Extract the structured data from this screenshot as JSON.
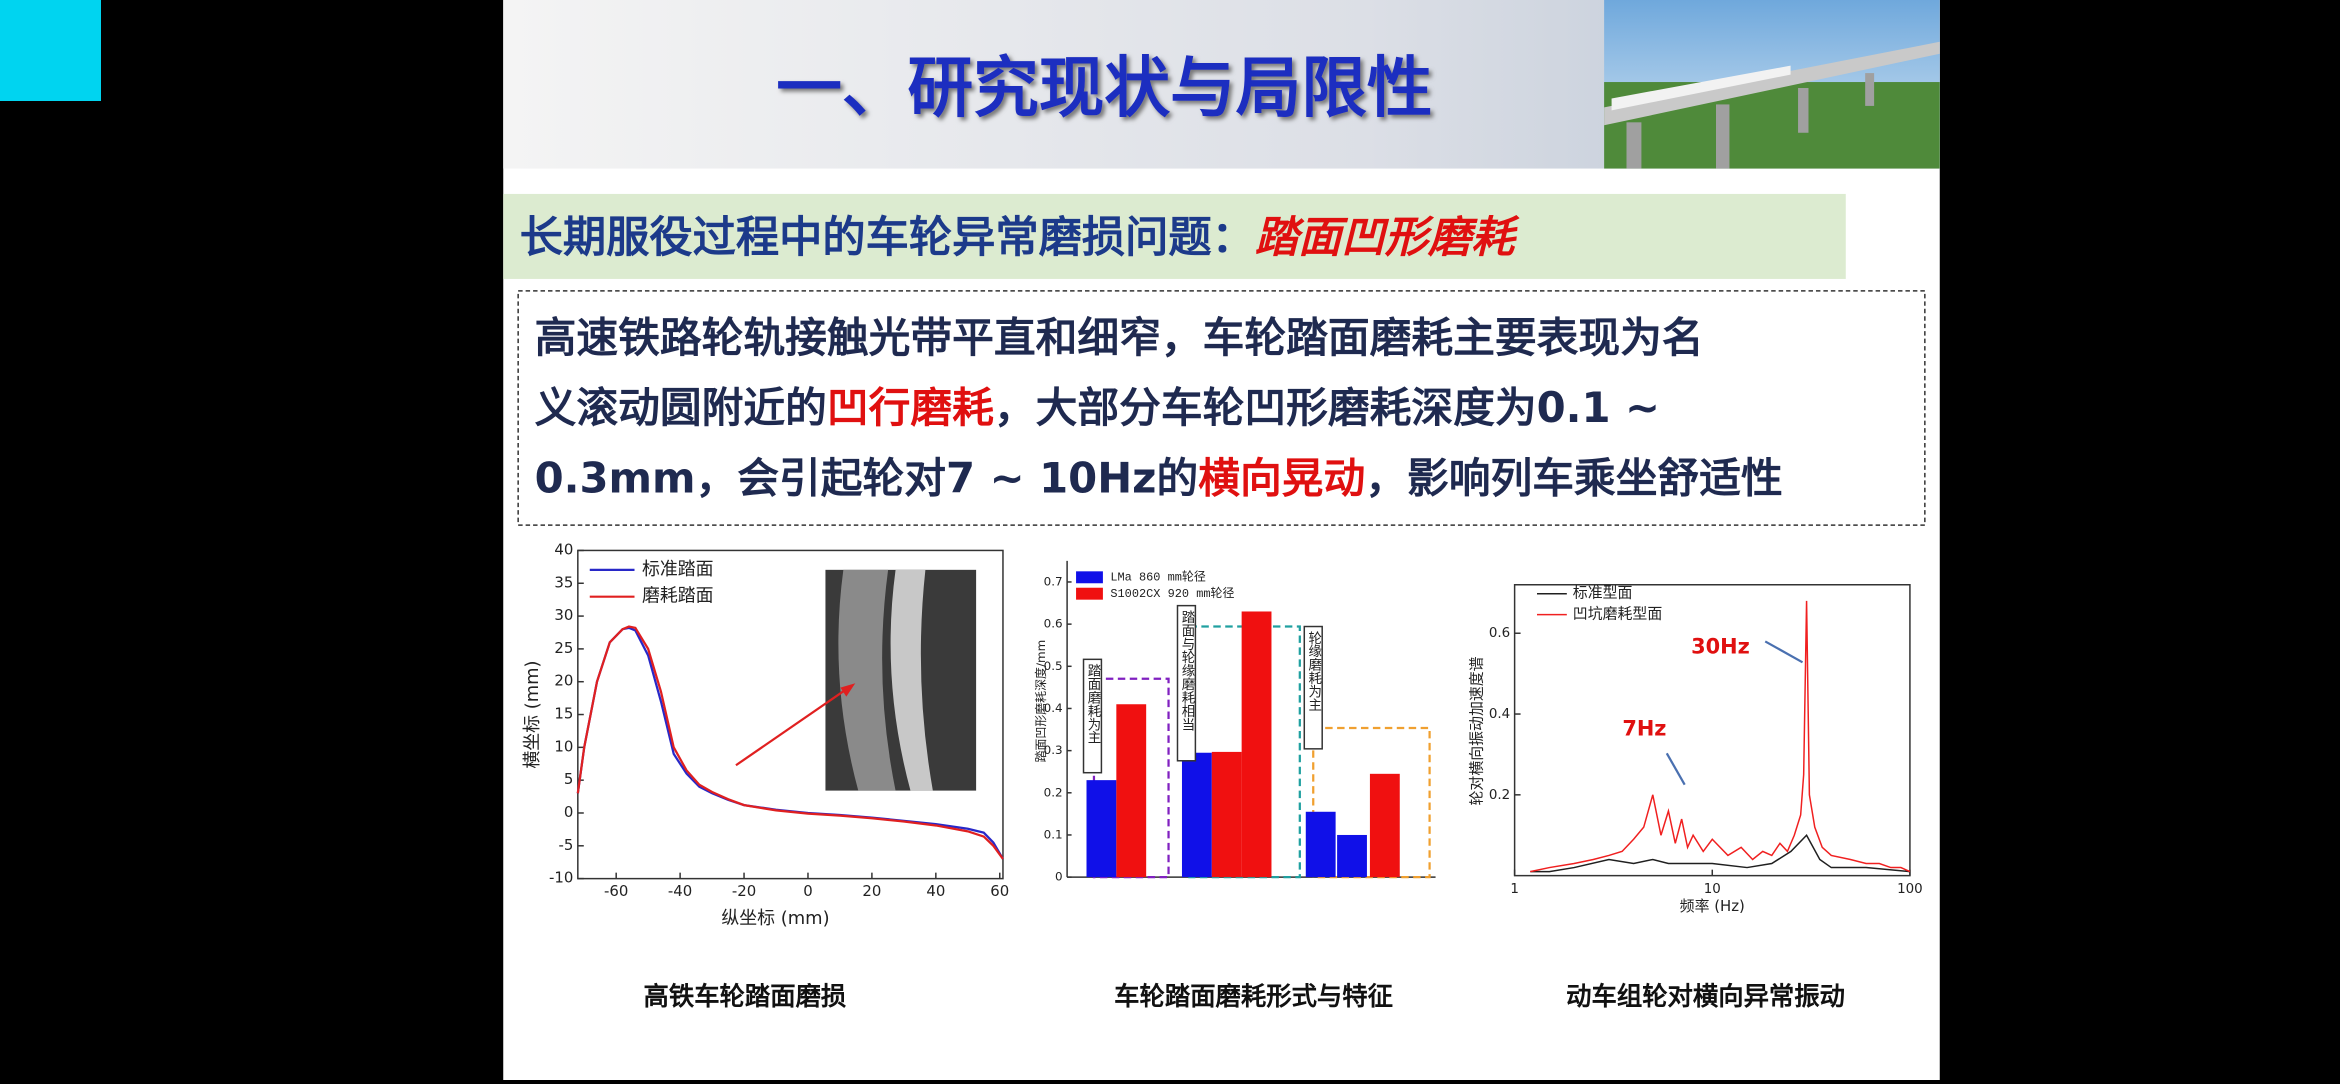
{
  "slide": {
    "title": "一、研究现状与局限性",
    "subtitle": {
      "text": "长期服役过程中的车轮异常磨损问题：",
      "emphasis": "踏面凹形磨耗"
    },
    "paragraph": {
      "lines": [
        [
          {
            "text": "高速铁路轮轨接触光带平直和细窄，车轮踏面磨耗主要表现为名",
            "color": "#1f2a50"
          }
        ],
        [
          {
            "text": "义滚动圆附近的",
            "color": "#1f2a50"
          },
          {
            "text": "凹行磨耗",
            "color": "#e01010"
          },
          {
            "text": "，大部分车轮凹形磨耗深度为0.1 ~",
            "color": "#1f2a50"
          }
        ],
        [
          {
            "text": "0.3mm，会引起轮对7 ~ 10Hz的",
            "color": "#1f2a50"
          },
          {
            "text": "横向晃动",
            "color": "#e01010"
          },
          {
            "text": "，影响列车乘坐舒适性",
            "color": "#1f2a50"
          }
        ]
      ]
    },
    "charts": [
      {
        "type": "line",
        "caption": "高铁车轮踏面磨损",
        "x_label": "纵坐标 (mm)",
        "y_label": "横坐标 (mm)",
        "xlim": [
          -72,
          61
        ],
        "xticks": [
          -60,
          -40,
          -20,
          0,
          20,
          40,
          60
        ],
        "ylim": [
          -10,
          40
        ],
        "yticks": [
          -10,
          -5,
          0,
          5,
          10,
          15,
          20,
          25,
          30,
          35,
          40
        ],
        "series": [
          {
            "name": "标准踏面",
            "color": "#2828c8",
            "x": [
              -72,
              -70,
              -66,
              -62,
              -58,
              -56,
              -54,
              -50,
              -46,
              -42,
              -38,
              -34,
              -30,
              -25,
              -20,
              -10,
              0,
              10,
              20,
              30,
              40,
              50,
              55,
              58,
              61
            ],
            "values": [
              3,
              10,
              20,
              26,
              28,
              28.2,
              27.8,
              24,
              17,
              9,
              6,
              4,
              3,
              2,
              1.2,
              0.5,
              0,
              -0.3,
              -0.7,
              -1.2,
              -1.7,
              -2.4,
              -3,
              -4.5,
              -7
            ]
          },
          {
            "name": "磨耗踏面",
            "color": "#e02020",
            "x": [
              -72,
              -70,
              -66,
              -62,
              -58,
              -56,
              -54,
              -50,
              -46,
              -42,
              -38,
              -34,
              -30,
              -25,
              -20,
              -10,
              0,
              10,
              20,
              30,
              40,
              50,
              55,
              58,
              61
            ],
            "values": [
              3,
              10,
              20,
              26,
              28,
              28.4,
              28.2,
              25,
              18.5,
              10,
              6.5,
              4.3,
              3.2,
              2.1,
              1.2,
              0.4,
              -0.1,
              -0.4,
              -0.8,
              -1.3,
              -1.9,
              -2.8,
              -3.6,
              -5,
              -7
            ]
          }
        ]
      },
      {
        "type": "bar",
        "caption": "车轮踏面磨耗形式与特征",
        "y_label": "踏面凹形磨耗深度/mm",
        "ylim": [
          0,
          0.75
        ],
        "yticks": [
          0,
          0.1,
          0.2,
          0.3,
          0.4,
          0.5,
          0.6,
          0.7
        ],
        "series": [
          {
            "name": "LMa    860 mm轮径",
            "color": "#1010e8",
            "values": [
              0.23,
              null,
              0.295,
              null,
              null,
              0.155,
              0.1,
              null
            ]
          },
          {
            "name": "S1002CX 920 mm轮径",
            "color": "#f01010",
            "values": [
              null,
              0.41,
              null,
              0.297,
              0.63,
              null,
              null,
              0.245
            ]
          }
        ],
        "annotations": [
          "踏面磨耗为主",
          "踏面与轮缘磨耗相当",
          "轮缘磨耗为主"
        ]
      },
      {
        "type": "line",
        "caption": "动车组轮对横向异常振动",
        "x_label": "频率 (Hz)",
        "y_label": "轮对横向振动加速度谱",
        "log_x": true,
        "xlim": [
          1,
          100
        ],
        "xticks": [
          1,
          10,
          100
        ],
        "ylim": [
          0,
          0.72
        ],
        "yticks": [
          0.2,
          0.4,
          0.6
        ],
        "series": [
          {
            "name": "标准型面",
            "color": "#202020",
            "x": [
              1.2,
              1.5,
              2,
              3,
              4,
              5,
              6,
              8,
              10,
              15,
              20,
              25,
              30,
              35,
              40,
              60,
              100
            ],
            "values": [
              0.01,
              0.01,
              0.02,
              0.04,
              0.03,
              0.04,
              0.03,
              0.03,
              0.03,
              0.02,
              0.03,
              0.06,
              0.1,
              0.04,
              0.02,
              0.02,
              0.01
            ]
          },
          {
            "name": "凹坑磨耗型面",
            "color": "#f02020",
            "x": [
              1.2,
              1.5,
              2,
              2.5,
              3,
              3.5,
              4,
              4.5,
              5,
              5.5,
              6,
              6.5,
              7,
              7.5,
              8,
              9,
              10,
              12,
              14,
              16,
              18,
              20,
              22,
              24,
              26,
              28,
              29,
              30,
              31,
              33,
              36,
              40,
              50,
              60,
              70,
              80,
              90,
              100
            ],
            "values": [
              0.01,
              0.02,
              0.03,
              0.04,
              0.05,
              0.06,
              0.09,
              0.12,
              0.2,
              0.1,
              0.16,
              0.08,
              0.14,
              0.07,
              0.1,
              0.06,
              0.09,
              0.05,
              0.07,
              0.04,
              0.06,
              0.05,
              0.08,
              0.06,
              0.1,
              0.15,
              0.25,
              0.68,
              0.2,
              0.12,
              0.07,
              0.05,
              0.04,
              0.03,
              0.03,
              0.02,
              0.02,
              0.01
            ]
          }
        ],
        "annotations": [
          "30Hz",
          "7Hz"
        ]
      }
    ]
  }
}
